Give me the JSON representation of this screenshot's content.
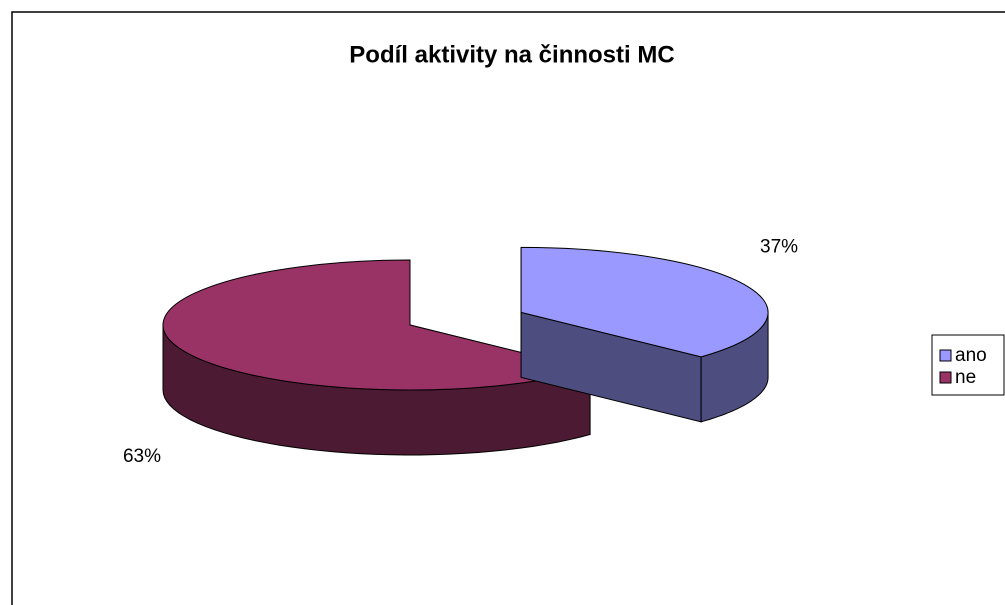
{
  "chart_data": {
    "type": "pie",
    "title": "Podíl aktivity na činnosti MC",
    "categories": [
      "ano",
      "ne"
    ],
    "values": [
      37,
      63
    ],
    "value_labels": [
      "37%",
      "63%"
    ],
    "colors": [
      "#9999ff",
      "#993366"
    ],
    "legend": "right"
  }
}
